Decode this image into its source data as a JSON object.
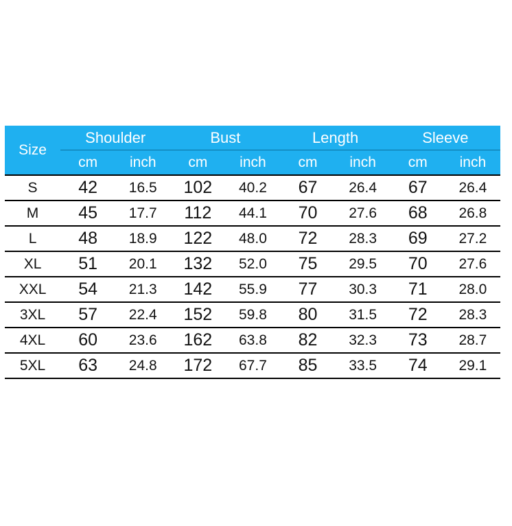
{
  "header_color": "#1fb0f0",
  "size_label": "Size",
  "groups": [
    "Shoulder",
    "Bust",
    "Length",
    "Sleeve"
  ],
  "units": [
    "cm",
    "inch"
  ],
  "rows": [
    {
      "size": "S",
      "values": [
        "42",
        "16.5",
        "102",
        "40.2",
        "67",
        "26.4",
        "67",
        "26.4"
      ]
    },
    {
      "size": "M",
      "values": [
        "45",
        "17.7",
        "112",
        "44.1",
        "70",
        "27.6",
        "68",
        "26.8"
      ]
    },
    {
      "size": "L",
      "values": [
        "48",
        "18.9",
        "122",
        "48.0",
        "72",
        "28.3",
        "69",
        "27.2"
      ]
    },
    {
      "size": "XL",
      "values": [
        "51",
        "20.1",
        "132",
        "52.0",
        "75",
        "29.5",
        "70",
        "27.6"
      ]
    },
    {
      "size": "XXL",
      "values": [
        "54",
        "21.3",
        "142",
        "55.9",
        "77",
        "30.3",
        "71",
        "28.0"
      ]
    },
    {
      "size": "3XL",
      "values": [
        "57",
        "22.4",
        "152",
        "59.8",
        "80",
        "31.5",
        "72",
        "28.3"
      ]
    },
    {
      "size": "4XL",
      "values": [
        "60",
        "23.6",
        "162",
        "63.8",
        "82",
        "32.3",
        "73",
        "28.7"
      ]
    },
    {
      "size": "5XL",
      "values": [
        "63",
        "24.8",
        "172",
        "67.7",
        "85",
        "33.5",
        "74",
        "29.1"
      ]
    }
  ]
}
